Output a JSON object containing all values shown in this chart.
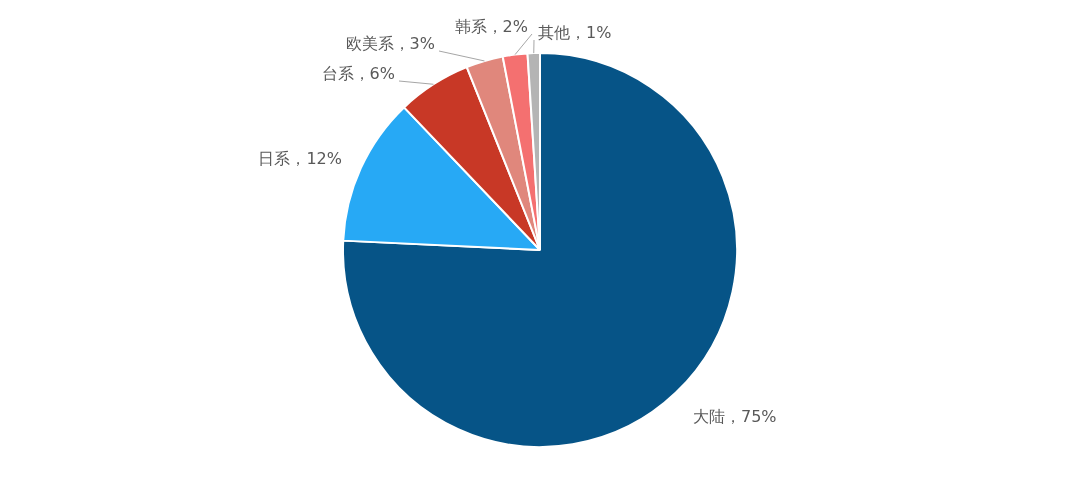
{
  "chart_data": {
    "type": "pie",
    "categories": [
      "大陆",
      "日系",
      "台系",
      "欧美系",
      "韩系",
      "其他"
    ],
    "values": [
      75,
      12,
      6,
      3,
      2,
      1
    ],
    "colors": [
      "#065487",
      "#27a9f5",
      "#c83826",
      "#e0877c",
      "#f47070",
      "#b4b4b4"
    ],
    "value_labels": [
      "，75%",
      "，12%",
      "，6%",
      "，3%",
      "，2%",
      "，1%"
    ],
    "legend": false
  }
}
